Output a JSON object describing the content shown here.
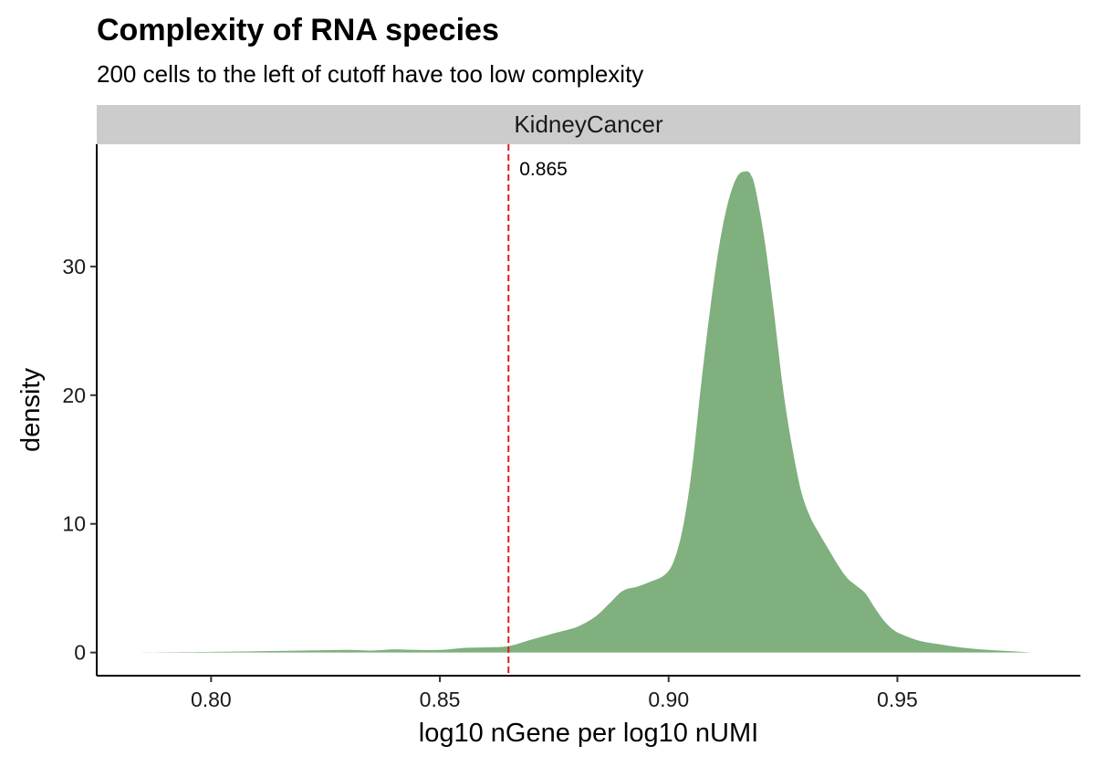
{
  "chart_data": {
    "type": "area",
    "title": "Complexity of RNA species",
    "subtitle": "200 cells to the left of cutoff have too low complexity",
    "facet": "KidneyCancer",
    "xlabel": "log10 nGene per log10 nUMI",
    "ylabel": "density",
    "xlim": [
      0.775,
      0.99
    ],
    "ylim": [
      -1.8,
      39.5
    ],
    "x_ticks": [
      0.8,
      0.85,
      0.9,
      0.95
    ],
    "x_tick_labels": [
      "0.80",
      "0.85",
      "0.90",
      "0.95"
    ],
    "y_ticks": [
      0,
      10,
      20,
      30
    ],
    "y_tick_labels": [
      "0",
      "10",
      "20",
      "30"
    ],
    "cutoff": {
      "value": 0.865,
      "label": "0.865",
      "color": "#e31a1c"
    },
    "fill_color": "#7fb07e",
    "series": [
      {
        "x": [
          0.784,
          0.79,
          0.8,
          0.81,
          0.82,
          0.83,
          0.835,
          0.84,
          0.845,
          0.85,
          0.855,
          0.86,
          0.865,
          0.87,
          0.875,
          0.88,
          0.884,
          0.887,
          0.89,
          0.893,
          0.896,
          0.899,
          0.901,
          0.903,
          0.905,
          0.907,
          0.909,
          0.911,
          0.913,
          0.915,
          0.917,
          0.918,
          0.919,
          0.921,
          0.923,
          0.925,
          0.927,
          0.929,
          0.931,
          0.933,
          0.935,
          0.937,
          0.939,
          0.941,
          0.943,
          0.945,
          0.947,
          0.949,
          0.951,
          0.955,
          0.96,
          0.965,
          0.97,
          0.975,
          0.979
        ],
        "values": [
          0,
          0.02,
          0.05,
          0.1,
          0.15,
          0.2,
          0.15,
          0.25,
          0.2,
          0.2,
          0.35,
          0.4,
          0.5,
          1.0,
          1.5,
          2.0,
          2.8,
          3.8,
          4.8,
          5.1,
          5.5,
          6.0,
          7.0,
          9.5,
          14.0,
          20.5,
          26.5,
          31.5,
          35.0,
          37.0,
          37.4,
          37.1,
          36.0,
          32.0,
          26.5,
          20.5,
          16.0,
          12.5,
          10.5,
          9.2,
          8.0,
          6.8,
          5.8,
          5.2,
          4.6,
          3.5,
          2.5,
          1.8,
          1.4,
          0.9,
          0.6,
          0.35,
          0.2,
          0.1,
          0.02
        ]
      }
    ]
  }
}
